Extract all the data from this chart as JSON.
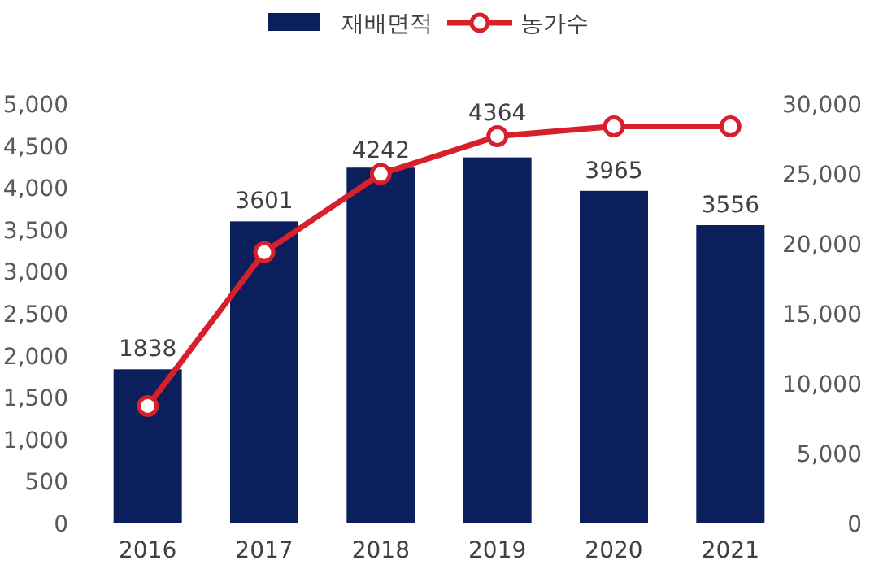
{
  "chart_data": {
    "type": "bar",
    "categories": [
      "2016",
      "2017",
      "2018",
      "2019",
      "2020",
      "2021"
    ],
    "series": [
      {
        "name": "재배면적",
        "color": "#0b1f5c",
        "values": [
          1838,
          3601,
          4242,
          4364,
          3965,
          3556
        ],
        "value_labels": [
          "1838",
          "3601",
          "4242",
          "4364",
          "3965",
          "3556"
        ]
      },
      {
        "name": "농가수",
        "type": "line",
        "axis": "y2",
        "color": "#d7202b",
        "marker": "circle",
        "values": [
          8400,
          19400,
          25000,
          27700,
          28400,
          28400
        ]
      }
    ],
    "ylim": [
      0,
      5000
    ],
    "yticks": [
      {
        "value": 0,
        "label": "0"
      },
      {
        "value": 500,
        "label": "500"
      },
      {
        "value": 1000,
        "label": "1,000"
      },
      {
        "value": 1500,
        "label": "1,500"
      },
      {
        "value": 2000,
        "label": "2,000"
      },
      {
        "value": 2500,
        "label": "2,500"
      },
      {
        "value": 3000,
        "label": "3,000"
      },
      {
        "value": 3500,
        "label": "3,500"
      },
      {
        "value": 4000,
        "label": "4,000"
      },
      {
        "value": 4500,
        "label": "4,500"
      },
      {
        "value": 5000,
        "label": "5,000"
      }
    ],
    "y2lim": [
      0,
      30000
    ],
    "y2ticks": [
      {
        "value": 0,
        "label": "0"
      },
      {
        "value": 5000,
        "label": "5,000"
      },
      {
        "value": 10000,
        "label": "10,000"
      },
      {
        "value": 15000,
        "label": "15,000"
      },
      {
        "value": 20000,
        "label": "20,000"
      },
      {
        "value": 25000,
        "label": "25,000"
      },
      {
        "value": 30000,
        "label": "30,000"
      }
    ],
    "legend": "top",
    "grid": false
  }
}
